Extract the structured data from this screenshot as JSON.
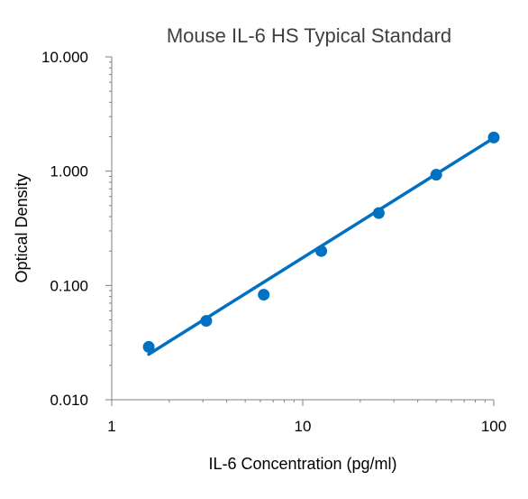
{
  "chart_data": {
    "type": "scatter",
    "title": "Mouse IL-6 HS Typical Standard",
    "xlabel": "IL-6 Concentration (pg/ml)",
    "ylabel": "Optical Density",
    "x_scale": "log",
    "y_scale": "log",
    "xlim": [
      1,
      100
    ],
    "ylim": [
      0.01,
      10
    ],
    "x_ticks": [
      1,
      10,
      100
    ],
    "x_tick_labels": [
      "1",
      "10",
      "100"
    ],
    "y_ticks": [
      0.01,
      0.1,
      1,
      10
    ],
    "y_tick_labels": [
      "0.010",
      "0.100",
      "1.000",
      "10.000"
    ],
    "grid": false,
    "legend": "none",
    "series": [
      {
        "x": [
          1.5625,
          3.125,
          6.25,
          12.5,
          25,
          50,
          100
        ],
        "y": [
          0.029,
          0.049,
          0.083,
          0.2,
          0.43,
          0.93,
          1.97
        ]
      }
    ],
    "trendline": {
      "x": [
        1.5625,
        100
      ],
      "y": [
        0.025,
        1.95
      ]
    },
    "colors": {
      "series": "#0070C0",
      "axis": "#7F7F7F"
    }
  }
}
